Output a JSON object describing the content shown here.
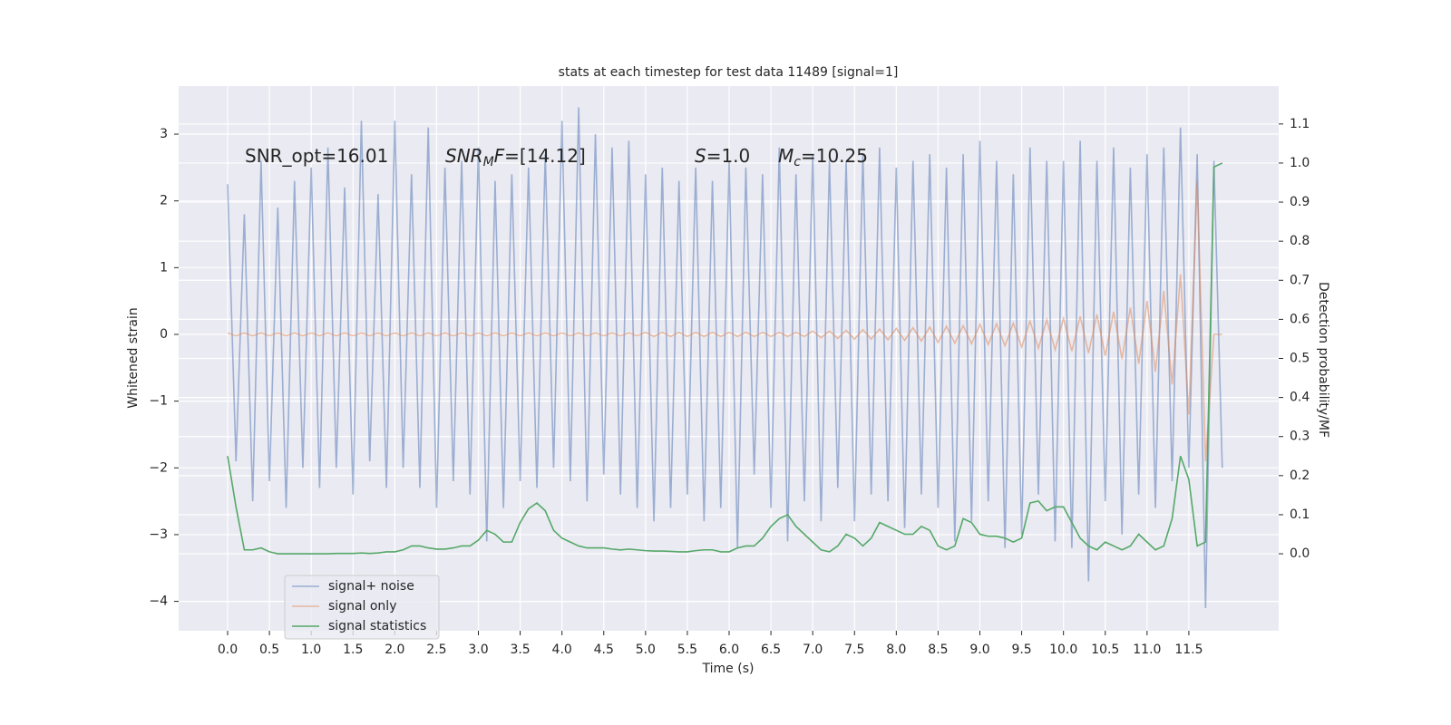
{
  "chart_data": {
    "type": "line",
    "title": "stats at each timestep for test data 11489 [signal=1]",
    "xlabel": "Time (s)",
    "ylabel": "Whitened strain",
    "y2label": "Detection probability/MF",
    "grid": true,
    "legend": "lower left",
    "xlim": [
      -0.586,
      12.575
    ],
    "ylim": [
      -4.44,
      3.72
    ],
    "y2lim": [
      -0.197,
      1.197
    ],
    "xticks": [
      {
        "value": 0,
        "label": "0.0"
      },
      0.5,
      {
        "value": 1,
        "label": "1.0"
      },
      1.5,
      {
        "value": 2,
        "label": "2.0"
      },
      2.5,
      {
        "value": 3,
        "label": "3.0"
      },
      3.5,
      {
        "value": 4,
        "label": "4.0"
      },
      4.5,
      {
        "value": 5,
        "label": "5.0"
      },
      5.5,
      {
        "value": 6,
        "label": "6.0"
      },
      6.5,
      {
        "value": 7,
        "label": "7.0"
      },
      7.5,
      {
        "value": 8,
        "label": "8.0"
      },
      8.5,
      {
        "value": 9,
        "label": "9.0"
      },
      9.5,
      {
        "value": 10,
        "label": "10.0"
      },
      10.5,
      {
        "value": 11,
        "label": "11.0"
      },
      11.5
    ],
    "yticks": [
      {
        "value": -4,
        "label": "−4"
      },
      {
        "value": -3,
        "label": "−3"
      },
      {
        "value": -2,
        "label": "−2"
      },
      {
        "value": -1,
        "label": "−1"
      },
      0,
      1,
      2,
      3
    ],
    "y2ticks": [
      {
        "value": 0,
        "label": "0.0"
      },
      0.1,
      0.2,
      0.3,
      0.4,
      0.5,
      0.6,
      0.7,
      0.8,
      0.9,
      {
        "value": 1,
        "label": "1.0"
      },
      1.1
    ],
    "annotations": [
      {
        "parts": [
          {
            "text": "SNR_opt=16.01"
          }
        ]
      },
      {
        "parts": [
          {
            "text": "SNR",
            "italic": true
          },
          {
            "text": "M",
            "italic": true,
            "sub": true
          },
          {
            "text": "F",
            "italic": true
          },
          {
            "text": "=[14.12]"
          }
        ]
      },
      {
        "parts": [
          {
            "text": "S",
            "italic": true
          },
          {
            "text": "=1.0"
          }
        ]
      },
      {
        "parts": [
          {
            "text": "M",
            "italic": true
          },
          {
            "text": "c",
            "italic": true,
            "sub": true
          },
          {
            "text": "=10.25"
          }
        ]
      }
    ],
    "x": [
      0,
      0.1,
      0.2,
      0.3,
      0.4,
      0.5,
      0.6,
      0.7,
      0.8,
      0.9,
      1,
      1.1,
      1.2,
      1.3,
      1.4,
      1.5,
      1.6,
      1.7,
      1.8,
      1.9,
      2,
      2.1,
      2.2,
      2.3,
      2.4,
      2.5,
      2.6,
      2.7,
      2.8,
      2.9,
      3,
      3.1,
      3.2,
      3.3,
      3.4,
      3.5,
      3.6,
      3.7,
      3.8,
      3.9,
      4,
      4.1,
      4.2,
      4.3,
      4.4,
      4.5,
      4.6,
      4.7,
      4.8,
      4.9,
      5,
      5.1,
      5.2,
      5.3,
      5.4,
      5.5,
      5.6,
      5.7,
      5.8,
      5.9,
      6,
      6.1,
      6.2,
      6.3,
      6.4,
      6.5,
      6.6,
      6.7,
      6.8,
      6.9,
      7,
      7.1,
      7.2,
      7.3,
      7.4,
      7.5,
      7.6,
      7.7,
      7.8,
      7.9,
      8,
      8.1,
      8.2,
      8.3,
      8.4,
      8.5,
      8.6,
      8.7,
      8.8,
      8.9,
      9,
      9.1,
      9.2,
      9.3,
      9.4,
      9.5,
      9.6,
      9.7,
      9.8,
      9.9,
      10,
      10.1,
      10.2,
      10.3,
      10.4,
      10.5,
      10.6,
      10.7,
      10.8,
      10.9,
      11,
      11.1,
      11.2,
      11.3,
      11.4,
      11.5,
      11.6,
      11.7,
      11.8,
      11.9
    ],
    "series": [
      {
        "name": "signal+ noise",
        "color": "#4c72b0",
        "alpha": 0.5,
        "values": [
          2.25,
          -1.9,
          1.8,
          -2.5,
          2.6,
          -2.2,
          1.9,
          -2.6,
          2.3,
          -2.0,
          2.5,
          -2.3,
          2.8,
          -2.0,
          2.2,
          -2.4,
          3.2,
          -1.9,
          2.1,
          -2.3,
          3.2,
          -2.0,
          2.4,
          -2.3,
          3.1,
          -2.6,
          2.5,
          -2.2,
          2.6,
          -2.4,
          2.8,
          -3.1,
          2.3,
          -2.6,
          2.4,
          -2.2,
          2.5,
          -2.3,
          2.7,
          -2.0,
          3.2,
          -2.2,
          3.4,
          -2.5,
          3.0,
          -2.1,
          2.8,
          -2.4,
          2.9,
          -2.6,
          2.4,
          -2.8,
          2.5,
          -2.6,
          2.3,
          -2.4,
          2.5,
          -2.8,
          2.3,
          -2.6,
          2.6,
          -3.2,
          2.5,
          -2.1,
          2.4,
          -2.6,
          2.8,
          -3.1,
          2.4,
          -2.5,
          2.7,
          -2.8,
          2.6,
          -2.3,
          2.6,
          -2.8,
          2.7,
          -2.4,
          2.8,
          -2.5,
          2.5,
          -2.9,
          2.6,
          -2.4,
          2.7,
          -2.6,
          2.5,
          -3.1,
          2.7,
          -2.8,
          2.9,
          -2.5,
          2.6,
          -3.2,
          2.4,
          -3.0,
          2.8,
          -2.4,
          2.6,
          -3.1,
          2.6,
          -3.2,
          2.9,
          -3.7,
          2.6,
          -2.5,
          2.8,
          -3.0,
          2.5,
          -2.4,
          2.7,
          -2.6,
          2.8,
          -2.2,
          3.1,
          -2.0,
          2.7,
          -4.1,
          2.6,
          -2.0
        ]
      },
      {
        "name": "signal only",
        "color": "#dd8452",
        "alpha": 0.5,
        "values": [
          0.02,
          -0.02,
          0.02,
          -0.02,
          0.02,
          -0.02,
          0.02,
          -0.02,
          0.02,
          -0.02,
          0.02,
          -0.02,
          0.02,
          -0.02,
          0.02,
          -0.02,
          0.02,
          -0.02,
          0.02,
          -0.02,
          0.02,
          -0.02,
          0.02,
          -0.02,
          0.02,
          -0.02,
          0.02,
          -0.02,
          0.02,
          -0.02,
          0.02,
          -0.02,
          0.02,
          -0.02,
          0.02,
          -0.02,
          0.02,
          -0.02,
          0.02,
          -0.02,
          0.02,
          -0.02,
          0.02,
          -0.02,
          0.02,
          -0.02,
          0.02,
          -0.02,
          0.02,
          -0.02,
          0.03,
          -0.03,
          0.03,
          -0.03,
          0.03,
          -0.03,
          0.03,
          -0.03,
          0.03,
          -0.03,
          0.03,
          -0.03,
          0.03,
          -0.03,
          0.03,
          -0.03,
          0.03,
          -0.03,
          0.03,
          -0.03,
          0.05,
          -0.05,
          0.05,
          -0.06,
          0.06,
          -0.07,
          0.07,
          -0.07,
          0.08,
          -0.08,
          0.09,
          -0.09,
          0.1,
          -0.1,
          0.11,
          -0.12,
          0.12,
          -0.13,
          0.13,
          -0.14,
          0.15,
          -0.15,
          0.16,
          -0.17,
          0.17,
          -0.19,
          0.2,
          -0.21,
          0.22,
          -0.23,
          0.24,
          -0.25,
          0.27,
          -0.28,
          0.3,
          -0.32,
          0.34,
          -0.37,
          0.4,
          -0.44,
          0.5,
          -0.56,
          0.65,
          -0.75,
          0.9,
          -1.2,
          2.3,
          -1.9,
          0,
          0
        ]
      },
      {
        "name": "signal statistics",
        "color": "#55a868",
        "alpha": 1,
        "axis": "y2",
        "values": [
          0.25,
          0.12,
          0.01,
          0.01,
          0.015,
          0.005,
          0,
          0,
          0,
          0,
          0,
          0,
          0,
          0.001,
          0.001,
          0.001,
          0.002,
          0.001,
          0.002,
          0.005,
          0.005,
          0.01,
          0.02,
          0.02,
          0.015,
          0.012,
          0.012,
          0.015,
          0.02,
          0.02,
          0.035,
          0.06,
          0.05,
          0.03,
          0.03,
          0.08,
          0.115,
          0.13,
          0.11,
          0.06,
          0.04,
          0.03,
          0.02,
          0.015,
          0.015,
          0.015,
          0.012,
          0.01,
          0.012,
          0.01,
          0.008,
          0.007,
          0.007,
          0.006,
          0.005,
          0.005,
          0.008,
          0.01,
          0.01,
          0.005,
          0.005,
          0.015,
          0.02,
          0.02,
          0.04,
          0.07,
          0.09,
          0.1,
          0.07,
          0.05,
          0.03,
          0.01,
          0.005,
          0.02,
          0.05,
          0.04,
          0.02,
          0.04,
          0.08,
          0.07,
          0.06,
          0.05,
          0.05,
          0.07,
          0.06,
          0.02,
          0.01,
          0.02,
          0.09,
          0.08,
          0.05,
          0.045,
          0.045,
          0.04,
          0.03,
          0.04,
          0.13,
          0.135,
          0.11,
          0.12,
          0.12,
          0.08,
          0.04,
          0.02,
          0.01,
          0.03,
          0.02,
          0.01,
          0.02,
          0.05,
          0.03,
          0.01,
          0.02,
          0.09,
          0.25,
          0.19,
          0.02,
          0.03,
          0.99,
          1.0
        ]
      }
    ]
  }
}
